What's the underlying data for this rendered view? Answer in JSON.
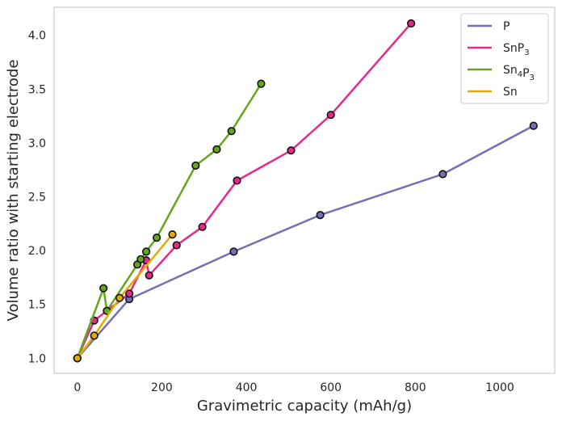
{
  "chart_data": {
    "type": "line",
    "title": "",
    "xlabel": "Gravimetric capacity (mAh/g)",
    "ylabel": "Volume ratio with starting electrode",
    "xlim": [
      -55,
      1130
    ],
    "ylim": [
      0.86,
      4.26
    ],
    "xticks": [
      0,
      200,
      400,
      600,
      800,
      1000
    ],
    "yticks": [
      1.0,
      1.5,
      2.0,
      2.5,
      3.0,
      3.5,
      4.0
    ],
    "xtick_labels": [
      "0",
      "200",
      "400",
      "600",
      "800",
      "1000"
    ],
    "ytick_labels": [
      "1.0",
      "1.5",
      "2.0",
      "2.5",
      "3.0",
      "3.5",
      "4.0"
    ],
    "grid": false,
    "legend_position": "top-right",
    "series": [
      {
        "name": "P",
        "label_base": "P",
        "label_sub": "",
        "label_base2": "",
        "label_sub2": "",
        "color": "#7570b3",
        "points": [
          [
            0,
            1.0
          ],
          [
            123,
            1.55
          ],
          [
            370,
            1.99
          ],
          [
            575,
            2.33
          ],
          [
            865,
            2.71
          ],
          [
            1080,
            3.16
          ]
        ]
      },
      {
        "name": "SnP3",
        "label_base": "SnP",
        "label_sub": "3",
        "label_base2": "",
        "label_sub2": "",
        "color": "#e7298a",
        "points": [
          [
            0,
            1.0
          ],
          [
            40,
            1.35
          ],
          [
            123,
            1.6
          ],
          [
            163,
            1.91
          ],
          [
            170,
            1.77
          ],
          [
            235,
            2.05
          ],
          [
            296,
            2.22
          ],
          [
            378,
            2.65
          ],
          [
            506,
            2.93
          ],
          [
            600,
            3.26
          ],
          [
            790,
            4.11
          ]
        ]
      },
      {
        "name": "Sn4P3",
        "label_base": "Sn",
        "label_sub": "4",
        "label_base2": "P",
        "label_sub2": "3",
        "color": "#66a61e",
        "points": [
          [
            0,
            1.0
          ],
          [
            62,
            1.65
          ],
          [
            70,
            1.44
          ],
          [
            142,
            1.87
          ],
          [
            150,
            1.92
          ],
          [
            163,
            1.99
          ],
          [
            188,
            2.12
          ],
          [
            280,
            2.79
          ],
          [
            330,
            2.94
          ],
          [
            365,
            3.11
          ],
          [
            435,
            3.55
          ]
        ]
      },
      {
        "name": "Sn",
        "label_base": "Sn",
        "label_sub": "",
        "label_base2": "",
        "label_sub2": "",
        "color": "#e6ab02",
        "points": [
          [
            0,
            1.0
          ],
          [
            40,
            1.21
          ],
          [
            100,
            1.56
          ],
          [
            225,
            2.15
          ]
        ]
      }
    ]
  }
}
